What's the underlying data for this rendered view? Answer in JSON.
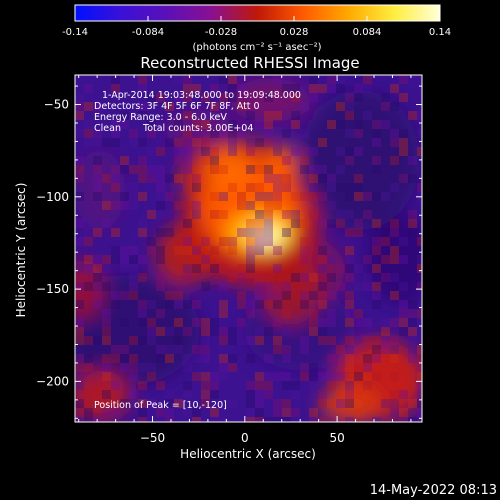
{
  "chart_data": {
    "type": "heatmap",
    "title": "Reconstructed RHESSI Image",
    "xlabel": "Heliocentric X (arcsec)",
    "ylabel": "Heliocentric Y (arcsec)",
    "xlim": [
      -92,
      96
    ],
    "ylim": [
      -222,
      -34
    ],
    "x_ticks": [
      -50,
      0,
      50
    ],
    "y_ticks": [
      -50,
      -100,
      -150,
      -200
    ],
    "colorbar": {
      "min": -0.14,
      "max": 0.14,
      "ticks": [
        "-0.14",
        "-0.084",
        "-0.028",
        "0.028",
        "0.084",
        "0.14"
      ],
      "label": "(photons cm⁻² s⁻¹ asec⁻²)",
      "colors": [
        "#0010ff",
        "#3a10d8",
        "#5a10b8",
        "#8a1090",
        "#c01808",
        "#ff5a00",
        "#ffaa00",
        "#ffee40",
        "#ffffd8"
      ]
    },
    "annotations": {
      "time": "1-Apr-2014 19:03:48.000 to 19:09:48.000",
      "detectors": "Detectors: 3F 4F 5F 6F 7F 8F, Att 0",
      "energy": "Energy Range: 3.0 - 6.0 keV",
      "clean_label": "Clean",
      "total_counts": "Total counts: 3.00E+04",
      "peak": "Position of Peak = [10,-120]"
    },
    "peak": [
      10,
      -120
    ],
    "footer_date": "14-May-2022 08:13"
  }
}
